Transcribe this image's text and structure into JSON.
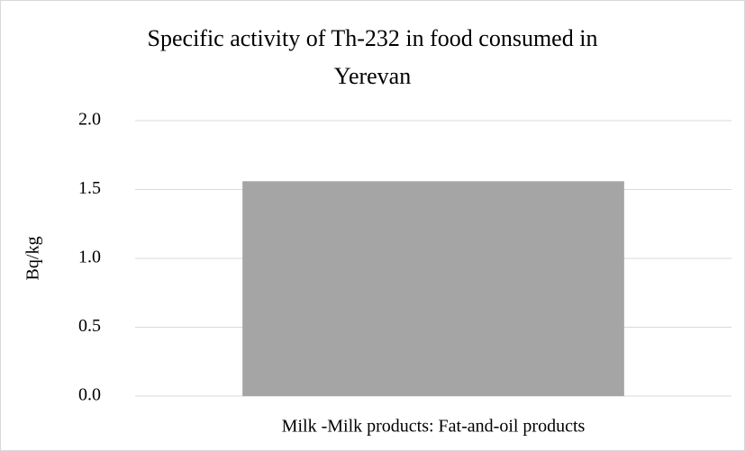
{
  "chart_data": {
    "type": "bar",
    "title": "Specific activity of Th-232 in food consumed in Yerevan",
    "y_label": "Bq/kg",
    "categories": [
      "Milk -Milk products: Fat-and-oil products"
    ],
    "values": [
      1.56
    ],
    "color": "#a5a5a5",
    "ylim": [
      0,
      2
    ],
    "yticks": [
      {
        "value": 0,
        "label": "0.0"
      },
      0.5,
      {
        "value": 1,
        "label": "1.0"
      },
      1.5,
      {
        "value": 2,
        "label": "2.0"
      }
    ],
    "grid": true
  }
}
